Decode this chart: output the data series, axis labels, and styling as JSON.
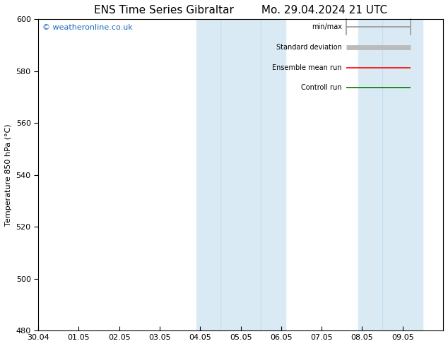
{
  "title_left": "ENS Time Series Gibraltar",
  "title_right": "Mo. 29.04.2024 21 UTC",
  "ylabel": "Temperature 850 hPa (°C)",
  "watermark": "© weatheronline.co.uk",
  "ylim": [
    480,
    600
  ],
  "yticks": [
    480,
    500,
    520,
    540,
    560,
    580,
    600
  ],
  "xlim": [
    0,
    10
  ],
  "xtick_labels": [
    "30.04",
    "01.05",
    "02.05",
    "03.05",
    "04.05",
    "05.05",
    "06.05",
    "07.05",
    "08.05",
    "09.05"
  ],
  "xtick_positions": [
    0,
    1,
    2,
    3,
    4,
    5,
    6,
    7,
    8,
    9
  ],
  "shade_bands": [
    {
      "xmin": 3.85,
      "xmax": 4.5,
      "inner": 4.2
    },
    {
      "xmin": 4.5,
      "xmax": 6.1,
      "inner": 5.5
    },
    {
      "xmin": 7.85,
      "xmax": 8.5,
      "inner": 8.2
    },
    {
      "xmin": 8.5,
      "xmax": 9.1,
      "inner": null
    }
  ],
  "shade_color": "#daeaf5",
  "background_color": "#ffffff",
  "legend_items": [
    {
      "label": "min/max",
      "color": "#999999",
      "lw": 1.2,
      "style": "line_with_caps"
    },
    {
      "label": "Standard deviation",
      "color": "#bbbbbb",
      "lw": 5,
      "style": "line"
    },
    {
      "label": "Ensemble mean run",
      "color": "#ff0000",
      "lw": 1.2,
      "style": "line"
    },
    {
      "label": "Controll run",
      "color": "#007700",
      "lw": 1.2,
      "style": "line"
    }
  ],
  "title_fontsize": 11,
  "tick_fontsize": 8,
  "ylabel_fontsize": 8,
  "watermark_fontsize": 8,
  "watermark_color": "#1a6bba"
}
